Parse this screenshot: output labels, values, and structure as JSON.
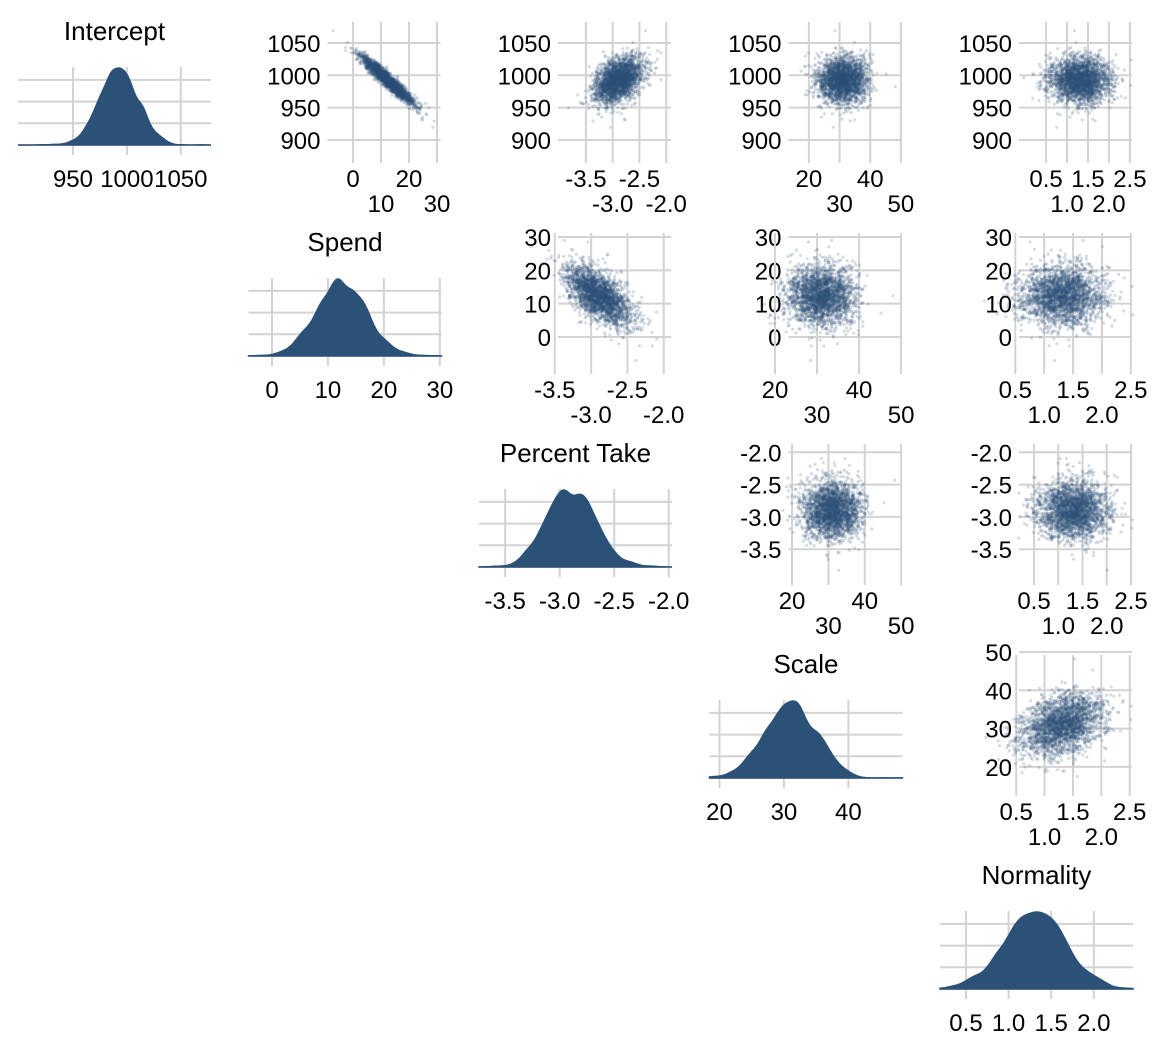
{
  "chart_data": {
    "type": "scatter",
    "subtype": "pairs-matrix",
    "colors": {
      "points": "#2c5177",
      "density": "#2c5177",
      "grid": "#d3d3d3"
    },
    "n_draws": 2500,
    "variables": [
      {
        "name": "Intercept",
        "mean": 992,
        "sd": 18,
        "ticks": [
          950,
          1000,
          1050
        ],
        "tick_labels": [
          "950",
          "1000",
          "1050"
        ],
        "scatter_ticks": [
          900,
          950,
          1000,
          1050
        ],
        "density_xlim": [
          899,
          1078
        ]
      },
      {
        "name": "Spend",
        "mean": 12.5,
        "sd": 4.5,
        "ticks": [
          0,
          10,
          20,
          30
        ],
        "tick_labels": [
          "0",
          "10",
          "20",
          "30"
        ],
        "scatter_ticks": [
          0,
          10,
          20,
          30
        ],
        "density_xlim": [
          -4.2,
          30.3
        ]
      },
      {
        "name": "Percent Take",
        "mean": -2.9,
        "sd": 0.22,
        "ticks": [
          -3.5,
          -3.0,
          -2.5,
          -2.0
        ],
        "tick_labels": [
          "-3.5",
          "-3.0",
          "-2.5",
          "-2.0"
        ],
        "scatter_ticks": [
          -3.5,
          -3.0,
          -2.5,
          -2.0
        ],
        "density_xlim": [
          -3.74,
          -1.97
        ]
      },
      {
        "name": "Scale",
        "mean": 31,
        "sd": 4,
        "ticks": [
          20,
          30,
          40
        ],
        "tick_labels": [
          "20",
          "30",
          "40"
        ],
        "scatter_ticks": [
          20,
          30,
          40,
          50
        ],
        "density_xlim": [
          18.45,
          48.4
        ]
      },
      {
        "name": "Normality",
        "mean": 1.3,
        "sd": 0.35,
        "ticks": [
          0.5,
          1.0,
          1.5,
          2.0
        ],
        "tick_labels": [
          "0.5",
          "1.0",
          "1.5",
          "2.0"
        ],
        "scatter_ticks": [
          0.5,
          1.0,
          1.5,
          2.0,
          2.5
        ],
        "density_xlim": [
          0.195,
          2.46
        ]
      }
    ],
    "scatter_tick_labels": [
      [
        "900",
        "950",
        "1000",
        "1050"
      ],
      [
        "0",
        "10",
        "20",
        "30"
      ],
      [
        "-3.5",
        "-3.0",
        "-2.5",
        "-2.0"
      ],
      [
        "20",
        "30",
        "40",
        "50"
      ],
      [
        "0.5",
        "1.0",
        "1.5",
        "2.0",
        "2.5"
      ]
    ],
    "correlations": [
      [
        1,
        -0.95,
        0.4,
        0,
        0
      ],
      [
        -0.95,
        1,
        -0.6,
        0,
        0
      ],
      [
        0.4,
        -0.6,
        1,
        0,
        0
      ],
      [
        0,
        0,
        0,
        1,
        0.35
      ],
      [
        0,
        0,
        0,
        0.35,
        1
      ]
    ],
    "scatter_ylim": [
      [
        876.8,
        1088.6
      ],
      [
        -8.7,
        32.4
      ],
      [
        -3.93,
        -1.81
      ],
      [
        14.5,
        50.26
      ]
    ],
    "scatter_xlim": {
      "0-1": [
        -15.2,
        31.25
      ],
      "0-2": [
        -4.34,
        -1.91
      ],
      "0-3": [
        7.8,
        50.2
      ],
      "0-4": [
        -0.55,
        2.55
      ],
      "1-2": [
        -3.69,
        -1.9
      ],
      "1-3": [
        19.17,
        50.1
      ],
      "1-4": [
        0.27,
        2.52
      ],
      "2-3": [
        14.35,
        50.1
      ],
      "2-4": [
        -0.16,
        2.52
      ],
      "3-4": [
        0.25,
        2.54
      ]
    }
  }
}
